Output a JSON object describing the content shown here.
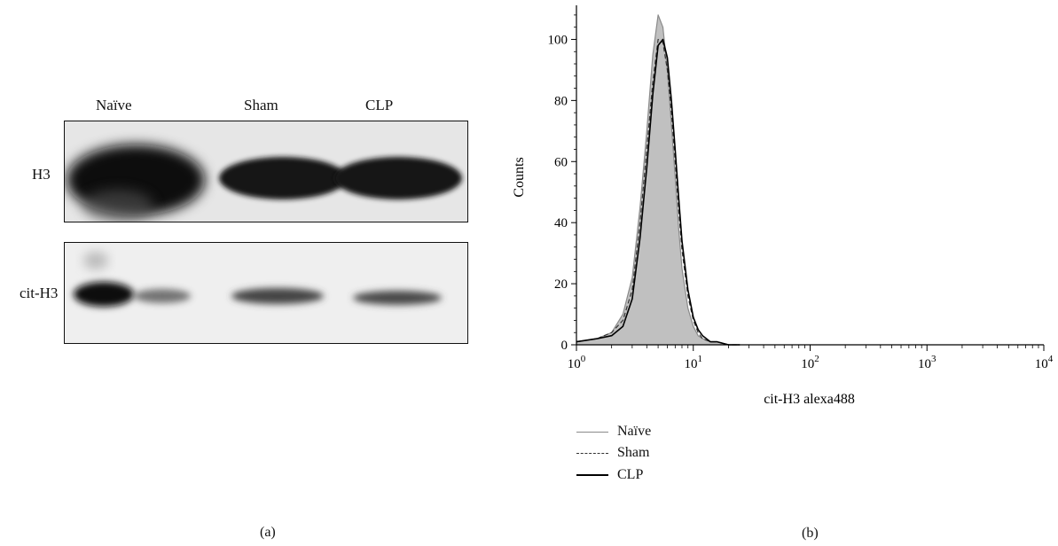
{
  "panel_a": {
    "label": "(a)",
    "lanes": [
      "Naïve",
      "Sham",
      "CLP"
    ],
    "rows": [
      "H3",
      "cit-H3"
    ]
  },
  "panel_b": {
    "label": "(b)",
    "legend": [
      {
        "name": "Naïve",
        "color": "#8a8a8a",
        "style": "solid"
      },
      {
        "name": "Sham",
        "color": "#333333",
        "style": "dashed"
      },
      {
        "name": "CLP",
        "color": "#000000",
        "style": "solid"
      }
    ]
  },
  "chart_data": {
    "type": "area",
    "xlabel": "cit-H3 alexa488",
    "ylabel": "Counts",
    "xscale": "log",
    "xlim": [
      1,
      10000
    ],
    "ylim": [
      0,
      110
    ],
    "xticks": [
      1,
      10,
      100,
      1000,
      10000
    ],
    "xtick_labels": [
      "10^0",
      "10^1",
      "10^2",
      "10^3",
      "10^4"
    ],
    "yticks": [
      0,
      20,
      40,
      60,
      80,
      100
    ],
    "ytick_labels": [
      "0",
      "20",
      "40",
      "60",
      "80",
      "100"
    ],
    "series": [
      {
        "name": "Naïve",
        "fill": "#c0c0c0",
        "x": [
          1,
          1.5,
          2,
          2.5,
          3,
          3.5,
          4,
          4.5,
          5,
          5.5,
          6,
          6.5,
          7,
          7.5,
          8,
          9,
          10,
          11,
          12,
          14,
          16,
          20,
          25
        ],
        "y": [
          1,
          2,
          4,
          10,
          22,
          45,
          70,
          95,
          108,
          104,
          90,
          72,
          55,
          38,
          25,
          12,
          6,
          3,
          2,
          1,
          1,
          0,
          0
        ]
      },
      {
        "name": "Sham",
        "x": [
          1,
          1.5,
          2,
          2.5,
          3,
          3.5,
          4,
          4.5,
          5,
          5.5,
          6,
          6.5,
          7,
          7.5,
          8,
          9,
          10,
          11,
          12,
          14,
          16,
          20,
          25
        ],
        "y": [
          1,
          2,
          4,
          8,
          18,
          40,
          64,
          86,
          100,
          99,
          90,
          76,
          60,
          44,
          31,
          16,
          8,
          4,
          2,
          1,
          1,
          0,
          0
        ]
      },
      {
        "name": "CLP",
        "x": [
          1,
          1.5,
          2,
          2.5,
          3,
          3.5,
          4,
          4.5,
          5,
          5.5,
          6,
          6.5,
          7,
          7.5,
          8,
          9,
          10,
          11,
          12,
          14,
          16,
          20,
          25
        ],
        "y": [
          1,
          2,
          3,
          6,
          15,
          35,
          58,
          82,
          98,
          100,
          94,
          80,
          64,
          48,
          34,
          18,
          9,
          5,
          3,
          1,
          1,
          0,
          0
        ]
      }
    ]
  }
}
